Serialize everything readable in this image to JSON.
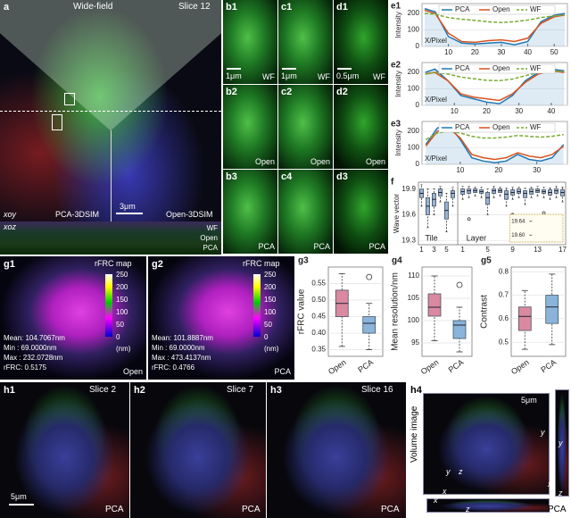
{
  "image_panels": {
    "a": {
      "label": "a",
      "title": "Wide-field",
      "slice": "Slice 12",
      "scale": "3μm",
      "xoy": "xoy",
      "left": "PCA-3DSIM",
      "right": "Open-3DSIM",
      "xoz": "xoz",
      "strips": [
        "WF",
        "Open",
        "PCA"
      ]
    },
    "b1": {
      "label": "b1",
      "scale": "1μm",
      "method": "WF"
    },
    "c1": {
      "label": "c1",
      "scale": "1μm",
      "method": "WF"
    },
    "d1": {
      "label": "d1",
      "scale": "0.5μm",
      "method": "WF"
    },
    "b2": {
      "label": "b2",
      "method": "Open"
    },
    "c2": {
      "label": "c2",
      "method": "Open"
    },
    "d2": {
      "label": "d2",
      "method": "Open"
    },
    "b3": {
      "label": "b3",
      "method": "PCA"
    },
    "c4": {
      "label": "c4",
      "method": "PCA"
    },
    "d3": {
      "label": "d3",
      "method": "PCA"
    },
    "g1": {
      "label": "g1",
      "title": "rFRC map",
      "stats": [
        "Mean: 104.7067nm",
        "Min : 69.0000nm",
        "Max : 232.0728nm",
        "rFRC: 0.5175"
      ],
      "method": "Open",
      "colorbar": [
        250,
        200,
        150,
        100,
        50,
        0
      ],
      "unit": "(nm)"
    },
    "g2": {
      "label": "g2",
      "title": "rFRC map",
      "stats": [
        "Mean: 101.8887nm",
        "Min : 69.0000nm",
        "Max : 473.4137nm",
        "rFRC: 0.4766"
      ],
      "method": "PCA",
      "colorbar": [
        250,
        200,
        150,
        100,
        50,
        0
      ],
      "unit": "(nm)"
    },
    "h1": {
      "label": "h1",
      "slice": "Slice 2",
      "scale": "5μm",
      "method": "PCA"
    },
    "h2": {
      "label": "h2",
      "slice": "Slice 7",
      "method": "PCA"
    },
    "h3": {
      "label": "h3",
      "slice": "Slice 16",
      "method": "PCA"
    },
    "h4": {
      "label": "h4",
      "title": "Volume image",
      "scale": "5μm",
      "method": "PCA",
      "axes": [
        "y",
        "x",
        "z",
        "y",
        "x",
        "z",
        "y",
        "z",
        "x"
      ]
    }
  },
  "chart_data": [
    {
      "type": "line",
      "label": "e1",
      "ylabel": "Intensity",
      "xlabel": "X/Pixel",
      "x": [
        1,
        5,
        10,
        15,
        20,
        25,
        30,
        35,
        40,
        45,
        50,
        54
      ],
      "series": [
        {
          "name": "PCA",
          "color": "#1f77b4",
          "area": true,
          "values": [
            230,
            210,
            60,
            20,
            15,
            20,
            25,
            10,
            30,
            150,
            190,
            200
          ]
        },
        {
          "name": "Open",
          "color": "#d9531e",
          "values": [
            220,
            200,
            80,
            30,
            25,
            35,
            40,
            30,
            50,
            140,
            180,
            190
          ]
        },
        {
          "name": "WF",
          "color": "#77ac30",
          "dashed": true,
          "values": [
            200,
            195,
            175,
            165,
            158,
            150,
            145,
            150,
            160,
            175,
            185,
            190
          ]
        }
      ],
      "xlim": [
        0,
        55
      ],
      "ylim": [
        0,
        260
      ],
      "xticks": [
        10,
        20,
        30,
        40,
        50
      ],
      "yticks": [
        0,
        100,
        200
      ],
      "grid": true
    },
    {
      "type": "line",
      "label": "e2",
      "ylabel": "Intensity",
      "xlabel": "X/Pixel",
      "x": [
        1,
        4,
        8,
        12,
        16,
        20,
        24,
        28,
        32,
        36,
        40,
        44
      ],
      "series": [
        {
          "name": "PCA",
          "color": "#1f77b4",
          "area": true,
          "values": [
            200,
            220,
            150,
            60,
            40,
            20,
            10,
            60,
            150,
            200,
            220,
            210
          ]
        },
        {
          "name": "Open",
          "color": "#d9531e",
          "values": [
            190,
            200,
            150,
            70,
            50,
            40,
            30,
            70,
            140,
            190,
            210,
            200
          ]
        },
        {
          "name": "WF",
          "color": "#77ac30",
          "dashed": true,
          "values": [
            190,
            200,
            190,
            172,
            162,
            152,
            150,
            160,
            180,
            200,
            210,
            205
          ]
        }
      ],
      "xlim": [
        0,
        45
      ],
      "ylim": [
        0,
        260
      ],
      "xticks": [
        10,
        20,
        30,
        40
      ],
      "yticks": [
        0,
        100,
        200
      ],
      "grid": true
    },
    {
      "type": "line",
      "label": "e3",
      "ylabel": "Intensity",
      "xlabel": "X/Pixel",
      "x": [
        1,
        4,
        7,
        10,
        13,
        16,
        19,
        22,
        25,
        28,
        31,
        34,
        37
      ],
      "series": [
        {
          "name": "PCA",
          "color": "#1f77b4",
          "area": true,
          "values": [
            120,
            220,
            240,
            150,
            40,
            20,
            10,
            20,
            60,
            30,
            20,
            40,
            120
          ]
        },
        {
          "name": "Open",
          "color": "#d9531e",
          "values": [
            110,
            200,
            220,
            160,
            60,
            40,
            30,
            40,
            70,
            50,
            40,
            60,
            110
          ]
        },
        {
          "name": "WF",
          "color": "#77ac30",
          "dashed": true,
          "values": [
            150,
            190,
            200,
            190,
            170,
            160,
            160,
            165,
            175,
            170,
            165,
            170,
            180
          ]
        }
      ],
      "xlim": [
        0,
        38
      ],
      "ylim": [
        0,
        260
      ],
      "xticks": [
        10,
        20,
        30
      ],
      "yticks": [
        0,
        100,
        200
      ],
      "grid": true
    },
    {
      "type": "box",
      "label": "f",
      "ylabel": "Wave vector",
      "color": "#9bb3d0",
      "groups": [
        {
          "name": "Tile",
          "categories": [
            1,
            null,
            3,
            null,
            5,
            null
          ],
          "boxes": [
            {
              "min": 19.7,
              "q1": 19.8,
              "median": 19.85,
              "q3": 19.9,
              "max": 19.95
            },
            {
              "min": 19.45,
              "q1": 19.6,
              "median": 19.7,
              "q3": 19.8,
              "max": 19.9
            },
            {
              "min": 19.6,
              "q1": 19.7,
              "median": 19.78,
              "q3": 19.85,
              "max": 19.9
            },
            {
              "min": 19.75,
              "q1": 19.82,
              "median": 19.86,
              "q3": 19.9,
              "max": 19.93
            },
            {
              "min": 19.4,
              "q1": 19.55,
              "median": 19.65,
              "q3": 19.75,
              "max": 19.85
            },
            {
              "min": 19.7,
              "q1": 19.8,
              "median": 19.85,
              "q3": 19.88,
              "max": 19.92
            }
          ]
        },
        {
          "name": "Layer",
          "categories": [
            1,
            null,
            null,
            null,
            5,
            null,
            null,
            null,
            9,
            null,
            null,
            null,
            13,
            null,
            null,
            null,
            17
          ],
          "boxes": [
            {
              "min": 19.78,
              "q1": 19.84,
              "median": 19.87,
              "q3": 19.9,
              "max": 19.93
            },
            {
              "min": 19.8,
              "q1": 19.85,
              "median": 19.88,
              "q3": 19.9,
              "max": 19.93,
              "outliers": [
                19.55
              ]
            },
            {
              "min": 19.82,
              "q1": 19.86,
              "median": 19.88,
              "q3": 19.9,
              "max": 19.92
            },
            {
              "min": 19.8,
              "q1": 19.85,
              "median": 19.87,
              "q3": 19.89,
              "max": 19.92
            },
            {
              "min": 19.6,
              "q1": 19.72,
              "median": 19.8,
              "q3": 19.86,
              "max": 19.9
            },
            {
              "min": 19.8,
              "q1": 19.85,
              "median": 19.88,
              "q3": 19.9,
              "max": 19.93
            },
            {
              "min": 19.82,
              "q1": 19.86,
              "median": 19.88,
              "q3": 19.9,
              "max": 19.92
            },
            {
              "min": 19.7,
              "q1": 19.78,
              "median": 19.84,
              "q3": 19.88,
              "max": 19.91
            },
            {
              "min": 19.78,
              "q1": 19.83,
              "median": 19.86,
              "q3": 19.89,
              "max": 19.92,
              "outliers": [
                19.6
              ]
            },
            {
              "min": 19.8,
              "q1": 19.85,
              "median": 19.87,
              "q3": 19.9,
              "max": 19.92
            },
            {
              "min": 19.72,
              "q1": 19.8,
              "median": 19.85,
              "q3": 19.88,
              "max": 19.91
            },
            {
              "min": 19.8,
              "q1": 19.84,
              "median": 19.87,
              "q3": 19.9,
              "max": 19.92
            },
            {
              "min": 19.82,
              "q1": 19.86,
              "median": 19.88,
              "q3": 19.9,
              "max": 19.93
            },
            {
              "min": 19.8,
              "q1": 19.85,
              "median": 19.87,
              "q3": 19.89,
              "max": 19.92,
              "outliers": [
                19.62
              ]
            },
            {
              "min": 19.78,
              "q1": 19.83,
              "median": 19.86,
              "q3": 19.89,
              "max": 19.91
            },
            {
              "min": 19.8,
              "q1": 19.85,
              "median": 19.88,
              "q3": 19.9,
              "max": 19.93
            },
            {
              "min": 19.75,
              "q1": 19.82,
              "median": 19.86,
              "q3": 19.89,
              "max": 19.92
            }
          ]
        }
      ],
      "ylim": [
        19.25,
        19.98
      ],
      "yticks": [
        19.3,
        19.6,
        19.9
      ],
      "inset_ylim": [
        19.58,
        19.66
      ],
      "inset_yticks": [
        19.64,
        {
          "value": 19.6,
          "label": "19.60"
        }
      ]
    },
    {
      "type": "box",
      "label": "g3",
      "ylabel": "rFRC value",
      "categories": [
        "Open",
        "PCA"
      ],
      "colors": [
        "#d98aa0",
        "#8ab4d9"
      ],
      "boxes": [
        {
          "min": 0.36,
          "q1": 0.45,
          "median": 0.49,
          "q3": 0.53,
          "max": 0.58
        },
        {
          "min": 0.35,
          "q1": 0.4,
          "median": 0.43,
          "q3": 0.45,
          "max": 0.49,
          "outliers": [
            0.57
          ]
        }
      ],
      "ylim": [
        0.33,
        0.6
      ],
      "yticks": [
        0.35,
        {
          "value": 0.4,
          "label": "0.40"
        },
        0.45,
        {
          "value": 0.5,
          "label": "0.50"
        },
        0.55
      ]
    },
    {
      "type": "box",
      "label": "g4",
      "ylabel": "Mean resolution/nm",
      "categories": [
        "Open",
        "PCA"
      ],
      "colors": [
        "#d98aa0",
        "#8ab4d9"
      ],
      "boxes": [
        {
          "min": 95.5,
          "q1": 101,
          "median": 103,
          "q3": 106,
          "max": 110
        },
        {
          "min": 93,
          "q1": 96,
          "median": 99,
          "q3": 100,
          "max": 103,
          "outliers": [
            108
          ]
        }
      ],
      "ylim": [
        92,
        112
      ],
      "yticks": [
        95,
        100,
        105,
        110
      ]
    },
    {
      "type": "box",
      "label": "g5",
      "ylabel": "Contrast",
      "categories": [
        "Open",
        "PCA"
      ],
      "colors": [
        "#d98aa0",
        "#8ab4d9"
      ],
      "boxes": [
        {
          "min": 0.47,
          "q1": 0.55,
          "median": 0.61,
          "q3": 0.65,
          "max": 0.72
        },
        {
          "min": 0.49,
          "q1": 0.58,
          "median": 0.65,
          "q3": 0.7,
          "max": 0.79
        }
      ],
      "ylim": [
        0.44,
        0.82
      ],
      "yticks": [
        0.5,
        0.6,
        0.7,
        0.8
      ]
    }
  ]
}
